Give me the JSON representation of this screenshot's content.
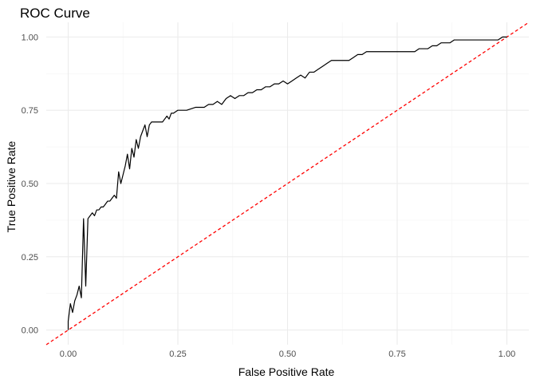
{
  "chart_data": {
    "type": "line",
    "title": "ROC Curve",
    "xlabel": "False Positive Rate",
    "ylabel": "True Positive Rate",
    "xlim": [
      -0.05,
      1.05
    ],
    "ylim": [
      -0.05,
      1.05
    ],
    "x_ticks": [
      0,
      0.25,
      0.5,
      0.75,
      1
    ],
    "x_tick_labels": [
      "0.00",
      "0.25",
      "0.50",
      "0.75",
      "1.00"
    ],
    "y_ticks": [
      0,
      0.25,
      0.5,
      0.75,
      1
    ],
    "y_tick_labels": [
      "0.00",
      "0.25",
      "0.50",
      "0.75",
      "1.00"
    ],
    "grid": true,
    "series": [
      {
        "role": "roc-curve",
        "color": "#000000",
        "line_style": "solid",
        "x": [
          0,
          0,
          0.005,
          0.01,
          0.015,
          0.02,
          0.025,
          0.03,
          0.035,
          0.04,
          0.045,
          0.05,
          0.055,
          0.06,
          0.065,
          0.07,
          0.075,
          0.08,
          0.085,
          0.09,
          0.095,
          0.1,
          0.105,
          0.11,
          0.115,
          0.12,
          0.125,
          0.13,
          0.135,
          0.14,
          0.145,
          0.15,
          0.155,
          0.16,
          0.165,
          0.17,
          0.175,
          0.18,
          0.185,
          0.19,
          0.195,
          0.2,
          0.205,
          0.21,
          0.215,
          0.22,
          0.225,
          0.23,
          0.235,
          0.24,
          0.25,
          0.27,
          0.29,
          0.3,
          0.31,
          0.32,
          0.33,
          0.34,
          0.35,
          0.36,
          0.37,
          0.38,
          0.39,
          0.4,
          0.41,
          0.42,
          0.43,
          0.44,
          0.45,
          0.46,
          0.47,
          0.48,
          0.49,
          0.5,
          0.51,
          0.52,
          0.53,
          0.54,
          0.55,
          0.56,
          0.57,
          0.58,
          0.59,
          0.6,
          0.61,
          0.62,
          0.63,
          0.64,
          0.65,
          0.66,
          0.67,
          0.68,
          0.69,
          0.7,
          0.71,
          0.72,
          0.73,
          0.74,
          0.75,
          0.76,
          0.77,
          0.78,
          0.79,
          0.8,
          0.81,
          0.82,
          0.83,
          0.84,
          0.85,
          0.86,
          0.87,
          0.88,
          0.89,
          0.9,
          0.91,
          0.92,
          0.93,
          0.94,
          0.95,
          0.96,
          0.97,
          0.98,
          0.99,
          1
        ],
        "y": [
          0,
          0.03,
          0.09,
          0.06,
          0.1,
          0.12,
          0.15,
          0.11,
          0.38,
          0.15,
          0.38,
          0.39,
          0.4,
          0.39,
          0.41,
          0.41,
          0.42,
          0.42,
          0.43,
          0.44,
          0.44,
          0.45,
          0.46,
          0.45,
          0.54,
          0.5,
          0.53,
          0.56,
          0.6,
          0.55,
          0.62,
          0.59,
          0.65,
          0.62,
          0.66,
          0.68,
          0.7,
          0.66,
          0.7,
          0.71,
          0.71,
          0.71,
          0.71,
          0.71,
          0.71,
          0.72,
          0.73,
          0.72,
          0.74,
          0.74,
          0.75,
          0.75,
          0.76,
          0.76,
          0.76,
          0.77,
          0.77,
          0.78,
          0.77,
          0.79,
          0.8,
          0.79,
          0.8,
          0.8,
          0.81,
          0.81,
          0.82,
          0.82,
          0.83,
          0.83,
          0.84,
          0.84,
          0.85,
          0.84,
          0.85,
          0.86,
          0.87,
          0.86,
          0.88,
          0.88,
          0.89,
          0.9,
          0.91,
          0.92,
          0.92,
          0.92,
          0.92,
          0.92,
          0.93,
          0.94,
          0.94,
          0.95,
          0.95,
          0.95,
          0.95,
          0.95,
          0.95,
          0.95,
          0.95,
          0.95,
          0.95,
          0.95,
          0.95,
          0.96,
          0.96,
          0.96,
          0.97,
          0.97,
          0.98,
          0.98,
          0.98,
          0.99,
          0.99,
          0.99,
          0.99,
          0.99,
          0.99,
          0.99,
          0.99,
          0.99,
          0.99,
          0.99,
          1,
          1
        ]
      },
      {
        "role": "chance-diagonal",
        "color": "#ff0000",
        "line_style": "dashed",
        "x": [
          -0.05,
          1.05
        ],
        "y": [
          -0.05,
          1.05
        ]
      }
    ]
  }
}
